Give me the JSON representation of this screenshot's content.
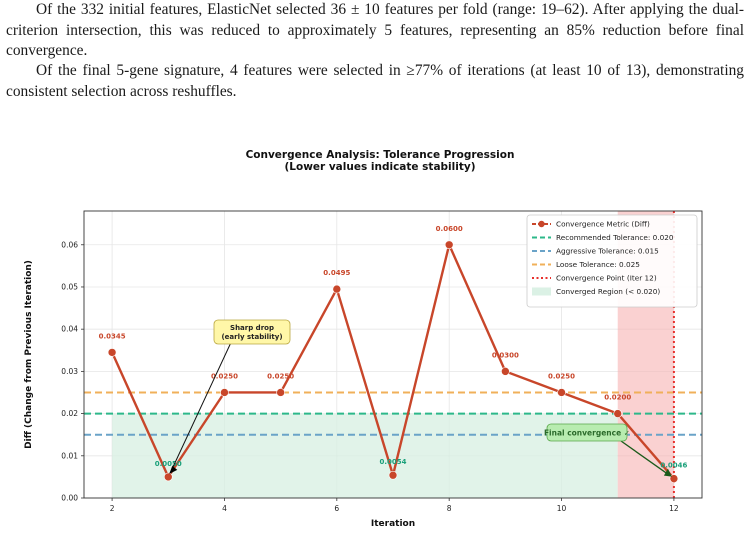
{
  "paragraphs": [
    "Of the 332 initial features, ElasticNet selected 36 ± 10 features per fold (range: 19–62). After applying the dual-criterion intersection, this was reduced to approximately 5 features, representing an 85% reduction before final convergence.",
    "Of the final 5-gene signature, 4 features were selected in ≥77% of iterations (at least 10 of 13), demonstrating consistent selection across reshuffles."
  ],
  "chart_data": {
    "type": "line",
    "title": "Convergence Analysis: Tolerance Progression",
    "subtitle": "(Lower values indicate stability)",
    "xlabel": "Iteration",
    "ylabel": "Diff (Change from Previous Iteration)",
    "xlim": [
      1.5,
      12.5
    ],
    "ylim": [
      0,
      0.068
    ],
    "x_ticks": [
      2,
      4,
      6,
      8,
      10,
      12
    ],
    "y_ticks": [
      "0.00",
      "0.01",
      "0.02",
      "0.03",
      "0.04",
      "0.05",
      "0.06"
    ],
    "grid": true,
    "legend_position": "top-right",
    "series": [
      {
        "name": "Convergence Metric (Diff)",
        "color": "#c8462a",
        "x": [
          2,
          3,
          4,
          5,
          6,
          7,
          8,
          9,
          10,
          11,
          12
        ],
        "values": [
          0.0345,
          0.005,
          0.025,
          0.025,
          0.0495,
          0.0054,
          0.06,
          0.03,
          0.025,
          0.02,
          0.0046
        ],
        "labels": [
          "0.0345",
          "0.0050",
          "0.0250",
          "0.0250",
          "0.0495",
          "0.0054",
          "0.0600",
          "0.0300",
          "0.0250",
          "0.0200",
          "0.0046"
        ]
      }
    ],
    "reference_lines": [
      {
        "name": "Recommended Tolerance: 0.020",
        "value": 0.02,
        "color": "#2db88a",
        "style": "dashed"
      },
      {
        "name": "Aggressive Tolerance: 0.015",
        "value": 0.015,
        "color": "#6aa3c8",
        "style": "dashed"
      },
      {
        "name": "Loose Tolerance: 0.025",
        "value": 0.025,
        "color": "#f0b05a",
        "style": "dashed"
      }
    ],
    "convergence_point": {
      "name": "Convergence Point (Iter 12)",
      "x": 12,
      "color": "#e8302c"
    },
    "converged_region": {
      "name": "Converged Region (< 0.020)",
      "ymax": 0.02,
      "x_from": 2,
      "x_to": 11,
      "color": "#d7efe2"
    },
    "highlight_region": {
      "x_from": 11,
      "x_to": 12,
      "color": "#f7b3b3"
    },
    "annotations": [
      {
        "text": "Sharp drop\n(early stability)",
        "target_x": 3,
        "target_y": 0.005,
        "box_color": "#fff7a8"
      },
      {
        "text": "Final convergence ✓",
        "target_x": 12,
        "target_y": 0.0046,
        "box_color": "#b8ecb0",
        "text_color": "#2a6a2a"
      }
    ]
  }
}
